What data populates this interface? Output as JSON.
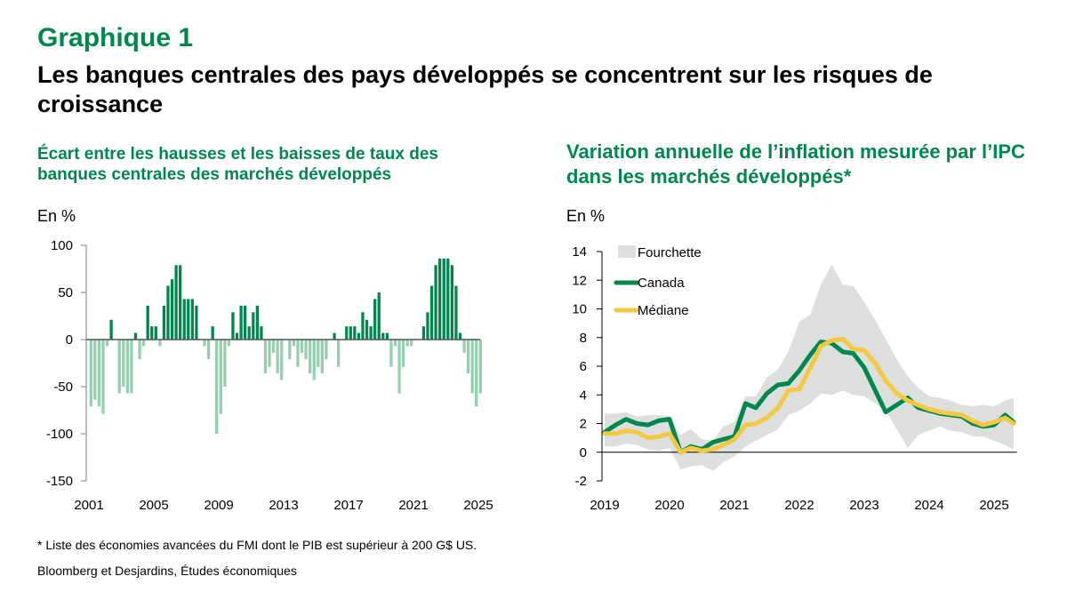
{
  "figure_label": "Graphique 1",
  "title": "Les banques centrales des pays développés se concentrent sur les risques de croissance",
  "footnote": "* Liste des économies avancées du FMI dont le PIB est supérieur à 200 G$ US.",
  "source": "Bloomberg et Desjardins, Études économiques",
  "colors": {
    "positive_bar": "#00874e",
    "negative_bar": "#94cfae",
    "canada": "#00874e",
    "median": "#f5c842",
    "range": "#dcdfde",
    "title_green": "#00874e"
  },
  "chart_data": [
    {
      "type": "bar",
      "title": "Écart entre les hausses et les baisses de taux des banques centrales des marchés développés",
      "ylabel": "En %",
      "xlabel": "",
      "ylim": [
        -150,
        100
      ],
      "yticks": [
        "100",
        "50",
        "0",
        "-50",
        "-100",
        "-150"
      ],
      "ytick_values": [
        100,
        50,
        0,
        -50,
        -100,
        -150
      ],
      "xticks": [
        "2001",
        "2005",
        "2009",
        "2013",
        "2017",
        "2021",
        "2025"
      ],
      "xtick_values": [
        2001,
        2005,
        2009,
        2013,
        2017,
        2021,
        2025
      ],
      "frequency": "quarterly",
      "start": 2001.0,
      "values": [
        -71,
        -64,
        -71,
        -79,
        -7,
        21,
        0,
        -57,
        -50,
        -57,
        -57,
        7,
        -21,
        -7,
        36,
        14,
        14,
        -7,
        36,
        57,
        64,
        79,
        79,
        43,
        43,
        43,
        36,
        0,
        -7,
        -21,
        14,
        -100,
        -79,
        -50,
        -7,
        29,
        7,
        36,
        36,
        14,
        29,
        36,
        14,
        -36,
        -29,
        -14,
        -36,
        -43,
        0,
        -21,
        -7,
        -29,
        -14,
        -21,
        -36,
        -43,
        -29,
        -36,
        -21,
        0,
        7,
        -29,
        0,
        14,
        14,
        14,
        7,
        29,
        21,
        14,
        43,
        50,
        7,
        7,
        -29,
        -7,
        -57,
        -29,
        -7,
        -7,
        0,
        0,
        14,
        29,
        57,
        79,
        86,
        86,
        86,
        79,
        57,
        7,
        -14,
        -36,
        -57,
        -71,
        -57
      ]
    },
    {
      "type": "line",
      "title": "Variation annuelle de l’inflation mesurée par l’IPC dans les marchés développés*",
      "ylabel": "En %",
      "xlabel": "",
      "ylim": [
        -2,
        14
      ],
      "xlim": [
        2019,
        2025.4
      ],
      "yticks": [
        "14",
        "12",
        "10",
        "8",
        "6",
        "4",
        "2",
        "0",
        "-2"
      ],
      "ytick_values": [
        14,
        12,
        10,
        8,
        6,
        4,
        2,
        0,
        -2
      ],
      "xticks": [
        "2019",
        "2020",
        "2021",
        "2022",
        "2023",
        "2024",
        "2025"
      ],
      "xtick_values": [
        2019,
        2020,
        2021,
        2022,
        2023,
        2024,
        2025
      ],
      "legend": [
        "Fourchette",
        "Canada",
        "Médiane"
      ],
      "legend_position": "top-left",
      "x": [
        2019.0,
        2019.17,
        2019.33,
        2019.5,
        2019.67,
        2019.83,
        2020.0,
        2020.17,
        2020.33,
        2020.5,
        2020.67,
        2020.83,
        2021.0,
        2021.17,
        2021.33,
        2021.5,
        2021.67,
        2021.83,
        2022.0,
        2022.17,
        2022.33,
        2022.5,
        2022.67,
        2022.83,
        2023.0,
        2023.17,
        2023.33,
        2023.5,
        2023.67,
        2023.83,
        2024.0,
        2024.17,
        2024.33,
        2024.5,
        2024.67,
        2024.83,
        2025.0,
        2025.17,
        2025.3
      ],
      "series": [
        {
          "name": "Canada",
          "values": [
            1.4,
            1.9,
            2.3,
            2.0,
            1.9,
            2.2,
            2.3,
            0.0,
            0.4,
            0.2,
            0.7,
            0.9,
            1.1,
            3.4,
            3.1,
            4.1,
            4.7,
            4.8,
            5.7,
            6.8,
            7.7,
            7.6,
            7.0,
            6.9,
            5.9,
            4.3,
            2.8,
            3.3,
            3.8,
            3.1,
            2.9,
            2.7,
            2.6,
            2.5,
            2.0,
            1.8,
            1.9,
            2.6,
            2.1
          ]
        },
        {
          "name": "Médiane",
          "values": [
            1.3,
            1.3,
            1.5,
            1.4,
            1.0,
            1.1,
            1.3,
            0.0,
            0.3,
            0.1,
            0.2,
            0.5,
            0.9,
            1.9,
            2.0,
            2.4,
            3.1,
            4.3,
            4.4,
            5.9,
            7.4,
            7.8,
            7.9,
            7.2,
            7.1,
            6.2,
            5.0,
            4.1,
            3.6,
            3.3,
            3.0,
            2.8,
            2.7,
            2.6,
            2.2,
            1.9,
            2.1,
            2.4,
            2.0
          ]
        },
        {
          "name": "Fourchette_max",
          "values": [
            2.7,
            2.7,
            2.8,
            2.5,
            2.6,
            2.6,
            2.5,
            1.2,
            1.6,
            0.9,
            0.8,
            1.8,
            2.1,
            3.9,
            3.9,
            5.2,
            5.8,
            7.0,
            9.1,
            9.6,
            11.7,
            13.1,
            11.7,
            11.6,
            10.5,
            9.2,
            7.9,
            6.5,
            5.3,
            4.5,
            3.9,
            3.8,
            3.6,
            3.3,
            3.2,
            3.3,
            3.2,
            3.6,
            3.8
          ]
        },
        {
          "name": "Fourchette_min",
          "values": [
            0.4,
            0.4,
            0.6,
            0.5,
            0.2,
            0.1,
            0.3,
            -1.2,
            -1.0,
            -0.9,
            -1.3,
            -0.7,
            -0.3,
            0.4,
            0.8,
            1.2,
            1.6,
            2.6,
            2.9,
            3.4,
            4.1,
            4.0,
            4.3,
            4.0,
            3.9,
            3.4,
            2.9,
            1.6,
            0.3,
            1.2,
            1.5,
            1.8,
            1.5,
            1.4,
            1.1,
            1.1,
            0.8,
            0.5,
            0.2
          ]
        }
      ]
    }
  ]
}
